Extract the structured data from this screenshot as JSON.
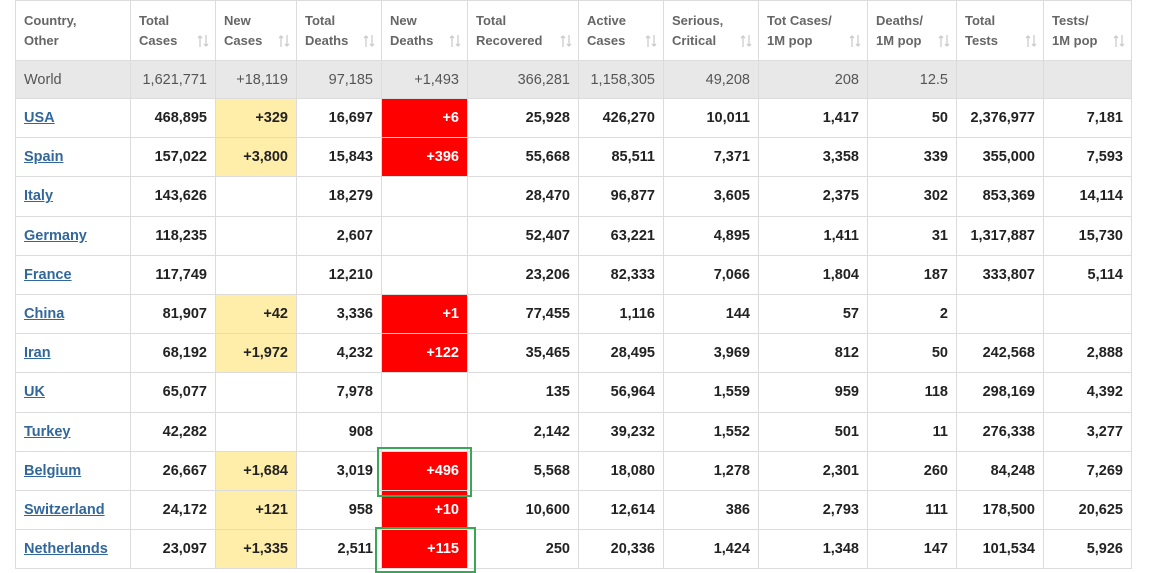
{
  "table": {
    "header": [
      [
        "Country,",
        "Other"
      ],
      [
        "Total",
        "Cases"
      ],
      [
        "New",
        "Cases"
      ],
      [
        "Total",
        "Deaths"
      ],
      [
        "New",
        "Deaths"
      ],
      [
        "Total",
        "Recovered"
      ],
      [
        "Active",
        "Cases"
      ],
      [
        "Serious,",
        "Critical"
      ],
      [
        "Tot Cases/",
        "1M pop"
      ],
      [
        "Deaths/",
        "1M pop"
      ],
      [
        "Total",
        "Tests"
      ],
      [
        "Tests/",
        "1M pop"
      ]
    ],
    "world": [
      "World",
      "1,621,771",
      "+18,119",
      "97,185",
      "+1,493",
      "366,281",
      "1,158,305",
      "49,208",
      "208",
      "12.5",
      null,
      null
    ],
    "rows": [
      [
        "USA",
        "468,895",
        "+329",
        "16,697",
        "+6",
        "25,928",
        "426,270",
        "10,011",
        "1,417",
        "50",
        "2,376,977",
        "7,181"
      ],
      [
        "Spain",
        "157,022",
        "+3,800",
        "15,843",
        "+396",
        "55,668",
        "85,511",
        "7,371",
        "3,358",
        "339",
        "355,000",
        "7,593"
      ],
      [
        "Italy",
        "143,626",
        null,
        "18,279",
        null,
        "28,470",
        "96,877",
        "3,605",
        "2,375",
        "302",
        "853,369",
        "14,114"
      ],
      [
        "Germany",
        "118,235",
        null,
        "2,607",
        null,
        "52,407",
        "63,221",
        "4,895",
        "1,411",
        "31",
        "1,317,887",
        "15,730"
      ],
      [
        "France",
        "117,749",
        null,
        "12,210",
        null,
        "23,206",
        "82,333",
        "7,066",
        "1,804",
        "187",
        "333,807",
        "5,114"
      ],
      [
        "China",
        "81,907",
        "+42",
        "3,336",
        "+1",
        "77,455",
        "1,116",
        "144",
        "57",
        "2",
        null,
        null
      ],
      [
        "Iran",
        "68,192",
        "+1,972",
        "4,232",
        "+122",
        "35,465",
        "28,495",
        "3,969",
        "812",
        "50",
        "242,568",
        "2,888"
      ],
      [
        "UK",
        "65,077",
        null,
        "7,978",
        null,
        "135",
        "56,964",
        "1,559",
        "959",
        "118",
        "298,169",
        "4,392"
      ],
      [
        "Turkey",
        "42,282",
        null,
        "908",
        null,
        "2,142",
        "39,232",
        "1,552",
        "501",
        "11",
        "276,338",
        "3,277"
      ],
      [
        "Belgium",
        "26,667",
        "+1,684",
        "3,019",
        "+496",
        "5,568",
        "18,080",
        "1,278",
        "2,301",
        "260",
        "84,248",
        "7,269"
      ],
      [
        "Switzerland",
        "24,172",
        "+121",
        "958",
        "+10",
        "10,600",
        "12,614",
        "386",
        "2,793",
        "111",
        "178,500",
        "20,625"
      ],
      [
        "Netherlands",
        "23,097",
        "+1,335",
        "2,511",
        "+115",
        "250",
        "20,336",
        "1,424",
        "1,348",
        "147",
        "101,534",
        "5,926"
      ]
    ]
  }
}
